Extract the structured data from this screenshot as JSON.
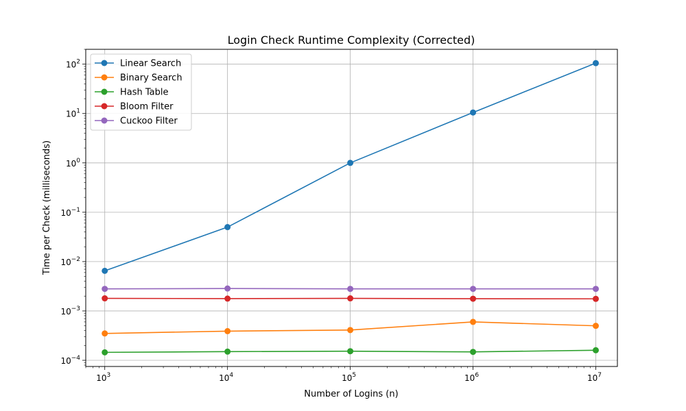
{
  "chart_data": {
    "type": "line",
    "title": "Login Check Runtime Complexity (Corrected)",
    "xlabel": "Number of Logins (n)",
    "ylabel": "Time per Check (milliseconds)",
    "xscale": "log",
    "yscale": "log",
    "x": [
      1000,
      10000,
      100000,
      1000000,
      10000000
    ],
    "xlim": [
      700,
      15000000
    ],
    "ylim": [
      7.5e-05,
      200
    ],
    "grid": true,
    "legend_position": "upper-left",
    "x_ticks": [
      {
        "base": "10",
        "exp": "3",
        "value": 1000
      },
      {
        "base": "10",
        "exp": "4",
        "value": 10000
      },
      {
        "base": "10",
        "exp": "5",
        "value": 100000
      },
      {
        "base": "10",
        "exp": "6",
        "value": 1000000
      },
      {
        "base": "10",
        "exp": "7",
        "value": 10000000
      }
    ],
    "y_ticks": [
      {
        "base": "10",
        "exp": "−4",
        "value": 0.0001
      },
      {
        "base": "10",
        "exp": "−3",
        "value": 0.001
      },
      {
        "base": "10",
        "exp": "−2",
        "value": 0.01
      },
      {
        "base": "10",
        "exp": "−1",
        "value": 0.1
      },
      {
        "base": "10",
        "exp": "0",
        "value": 1
      },
      {
        "base": "10",
        "exp": "1",
        "value": 10
      },
      {
        "base": "10",
        "exp": "2",
        "value": 100
      }
    ],
    "series": [
      {
        "name": "Linear Search",
        "color": "#1f77b4",
        "values": [
          0.0065,
          0.05,
          1.0,
          10.5,
          105
        ]
      },
      {
        "name": "Binary Search",
        "color": "#ff7f0e",
        "values": [
          0.00035,
          0.00039,
          0.00041,
          0.0006,
          0.0005
        ]
      },
      {
        "name": "Hash Table",
        "color": "#2ca02c",
        "values": [
          0.000145,
          0.00015,
          0.000153,
          0.000148,
          0.00016
        ]
      },
      {
        "name": "Bloom Filter",
        "color": "#d62728",
        "values": [
          0.0018,
          0.00178,
          0.0018,
          0.00177,
          0.00176
        ]
      },
      {
        "name": "Cuckoo Filter",
        "color": "#9467bd",
        "values": [
          0.0028,
          0.00285,
          0.0028,
          0.0028,
          0.0028
        ]
      }
    ]
  }
}
